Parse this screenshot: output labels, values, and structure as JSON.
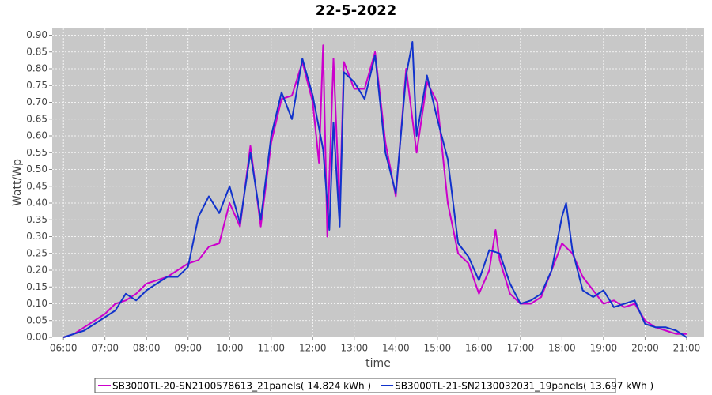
{
  "chart_data": {
    "type": "line",
    "title": "22-5-2022",
    "x_label": "time",
    "y_label": "Watt/Wp",
    "xlim": [
      5.73,
      21.42
    ],
    "ylim": [
      0,
      0.92
    ],
    "grid": true,
    "legend": "bottom",
    "xticks": [
      {
        "value": 6,
        "label": "06:00"
      },
      {
        "value": 7,
        "label": "07:00"
      },
      {
        "value": 8,
        "label": "08:00"
      },
      {
        "value": 9,
        "label": "09:00"
      },
      {
        "value": 10,
        "label": "10:00"
      },
      {
        "value": 11,
        "label": "11:00"
      },
      {
        "value": 12,
        "label": "12:00"
      },
      {
        "value": 13,
        "label": "13:00"
      },
      {
        "value": 14,
        "label": "14:00"
      },
      {
        "value": 15,
        "label": "15:00"
      },
      {
        "value": 16,
        "label": "16:00"
      },
      {
        "value": 17,
        "label": "17:00"
      },
      {
        "value": 18,
        "label": "18:00"
      },
      {
        "value": 19,
        "label": "19:00"
      },
      {
        "value": 20,
        "label": "20:00"
      },
      {
        "value": 21,
        "label": "21:00"
      }
    ],
    "yticks": [
      {
        "value": 0,
        "label": "0.00"
      },
      0.05,
      {
        "value": 0.1,
        "label": "0.10"
      },
      0.15,
      {
        "value": 0.2,
        "label": "0.20"
      },
      0.25,
      {
        "value": 0.3,
        "label": "0.30"
      },
      0.35,
      {
        "value": 0.4,
        "label": "0.40"
      },
      0.45,
      {
        "value": 0.5,
        "label": "0.50"
      },
      0.55,
      {
        "value": 0.6,
        "label": "0.60"
      },
      0.65,
      {
        "value": 0.7,
        "label": "0.70"
      },
      0.75,
      {
        "value": 0.8,
        "label": "0.80"
      },
      0.85,
      {
        "value": 0.9,
        "label": "0.90"
      }
    ],
    "series": [
      {
        "name": "SB3000TL-20-SN2100578613_21panels( 14.824 kWh )",
        "color": "#cc00cc",
        "x": [
          6.0,
          6.25,
          6.5,
          6.75,
          7.0,
          7.25,
          7.5,
          7.75,
          8.0,
          8.25,
          8.5,
          8.75,
          9.0,
          9.25,
          9.5,
          9.75,
          10.0,
          10.25,
          10.5,
          10.75,
          11.0,
          11.25,
          11.5,
          11.75,
          12.0,
          12.15,
          12.25,
          12.35,
          12.5,
          12.65,
          12.75,
          13.0,
          13.25,
          13.5,
          13.75,
          14.0,
          14.25,
          14.5,
          14.75,
          15.0,
          15.25,
          15.5,
          15.75,
          16.0,
          16.25,
          16.4,
          16.5,
          16.75,
          17.0,
          17.25,
          17.5,
          17.75,
          18.0,
          18.25,
          18.5,
          18.75,
          19.0,
          19.25,
          19.5,
          19.75,
          20.0,
          20.25,
          20.5,
          20.75,
          21.0
        ],
        "values": [
          0.0,
          0.01,
          0.03,
          0.05,
          0.07,
          0.1,
          0.11,
          0.13,
          0.16,
          0.17,
          0.18,
          0.2,
          0.22,
          0.23,
          0.27,
          0.28,
          0.4,
          0.33,
          0.57,
          0.33,
          0.58,
          0.71,
          0.72,
          0.82,
          0.7,
          0.52,
          0.87,
          0.3,
          0.83,
          0.38,
          0.82,
          0.74,
          0.74,
          0.85,
          0.58,
          0.42,
          0.8,
          0.55,
          0.76,
          0.7,
          0.4,
          0.25,
          0.22,
          0.13,
          0.2,
          0.32,
          0.23,
          0.13,
          0.1,
          0.1,
          0.12,
          0.2,
          0.28,
          0.25,
          0.18,
          0.14,
          0.1,
          0.11,
          0.09,
          0.1,
          0.05,
          0.03,
          0.02,
          0.01,
          0.01
        ]
      },
      {
        "name": "SB3000TL-21-SN2130032031_19panels( 13.697 kWh )",
        "color": "#1133cc",
        "x": [
          6.0,
          6.25,
          6.5,
          6.75,
          7.0,
          7.25,
          7.5,
          7.75,
          8.0,
          8.25,
          8.5,
          8.75,
          9.0,
          9.25,
          9.5,
          9.75,
          10.0,
          10.25,
          10.5,
          10.75,
          11.0,
          11.25,
          11.5,
          11.75,
          12.0,
          12.25,
          12.4,
          12.5,
          12.65,
          12.75,
          13.0,
          13.25,
          13.5,
          13.75,
          14.0,
          14.25,
          14.4,
          14.5,
          14.75,
          15.0,
          15.25,
          15.5,
          15.75,
          16.0,
          16.25,
          16.5,
          16.75,
          17.0,
          17.25,
          17.5,
          17.75,
          18.0,
          18.1,
          18.25,
          18.5,
          18.75,
          19.0,
          19.25,
          19.5,
          19.75,
          20.0,
          20.25,
          20.5,
          20.75,
          21.0
        ],
        "values": [
          0.0,
          0.01,
          0.02,
          0.04,
          0.06,
          0.08,
          0.13,
          0.11,
          0.14,
          0.16,
          0.18,
          0.18,
          0.21,
          0.36,
          0.42,
          0.37,
          0.45,
          0.34,
          0.55,
          0.35,
          0.6,
          0.73,
          0.65,
          0.83,
          0.72,
          0.56,
          0.32,
          0.64,
          0.33,
          0.79,
          0.76,
          0.71,
          0.84,
          0.55,
          0.43,
          0.78,
          0.88,
          0.6,
          0.78,
          0.65,
          0.53,
          0.28,
          0.24,
          0.17,
          0.26,
          0.25,
          0.16,
          0.1,
          0.11,
          0.13,
          0.2,
          0.36,
          0.4,
          0.26,
          0.14,
          0.12,
          0.14,
          0.09,
          0.1,
          0.11,
          0.04,
          0.03,
          0.03,
          0.02,
          0.0
        ]
      }
    ]
  }
}
